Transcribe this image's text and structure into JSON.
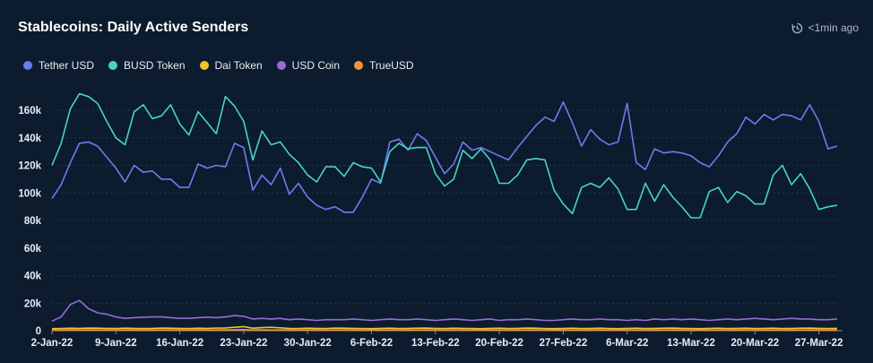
{
  "header": {
    "title": "Stablecoins: Daily Active Senders",
    "timestamp": "<1min ago",
    "timestamp_icon": "clock-refresh-icon"
  },
  "chart_data": {
    "type": "line",
    "title": "Stablecoins: Daily Active Senders",
    "xlabel": "",
    "ylabel": "",
    "ylim": [
      0,
      175000
    ],
    "y_ticks": [
      "0",
      "20k",
      "40k",
      "60k",
      "80k",
      "100k",
      "120k",
      "140k",
      "160k"
    ],
    "y_tick_values": [
      0,
      20000,
      40000,
      60000,
      80000,
      100000,
      120000,
      140000,
      160000
    ],
    "x_ticks": [
      "2-Jan-22",
      "9-Jan-22",
      "16-Jan-22",
      "23-Jan-22",
      "30-Jan-22",
      "6-Feb-22",
      "13-Feb-22",
      "20-Feb-22",
      "27-Feb-22",
      "6-Mar-22",
      "13-Mar-22",
      "20-Mar-22",
      "27-Mar-22"
    ],
    "x_tick_day_index": [
      0,
      7,
      14,
      21,
      28,
      35,
      42,
      49,
      56,
      63,
      70,
      77,
      84
    ],
    "x_start": "2-Jan-22",
    "x_end": "27-Mar-22",
    "grid": "horizontal",
    "legend_position": "top-left",
    "series": [
      {
        "name": "Tether USD",
        "color": "#6b7cf0",
        "values": [
          96000,
          106000,
          122000,
          136000,
          137000,
          134000,
          126000,
          118000,
          108000,
          120000,
          115000,
          116000,
          110000,
          110000,
          104000,
          104000,
          121000,
          118000,
          120000,
          119000,
          136000,
          133000,
          102000,
          113000,
          106000,
          118000,
          99000,
          107000,
          97000,
          91000,
          88000,
          90000,
          86000,
          86000,
          97000,
          110000,
          107000,
          137000,
          139000,
          131000,
          143000,
          138000,
          126000,
          114000,
          121000,
          137000,
          131000,
          133000,
          130000,
          127000,
          124000,
          133000,
          141000,
          149000,
          155000,
          152000,
          166000,
          151000,
          134000,
          146000,
          139000,
          135000,
          137000,
          165000,
          122000,
          117000,
          132000,
          129000,
          130000,
          129000,
          127000,
          122000,
          119000,
          127000,
          137000,
          143000,
          155000,
          150000,
          157000,
          153000,
          157000,
          156000,
          153000,
          164000,
          152000,
          132000,
          134000
        ]
      },
      {
        "name": "BUSD Token",
        "color": "#46d4c1",
        "values": [
          120000,
          136000,
          161000,
          172000,
          170000,
          165000,
          152000,
          140000,
          135000,
          159000,
          164000,
          154000,
          156000,
          164000,
          150000,
          142000,
          159000,
          151000,
          143000,
          170000,
          163000,
          152000,
          124000,
          145000,
          135000,
          137000,
          128000,
          122000,
          113000,
          108000,
          119000,
          119000,
          112000,
          122000,
          119000,
          118000,
          108000,
          130000,
          136000,
          132000,
          133000,
          133000,
          114000,
          105000,
          110000,
          131000,
          125000,
          132000,
          124000,
          107000,
          107000,
          113000,
          124000,
          125000,
          124000,
          102000,
          92000,
          85000,
          104000,
          107000,
          104000,
          111000,
          103000,
          88000,
          88000,
          107000,
          94000,
          106000,
          97000,
          90000,
          82000,
          82000,
          101000,
          104000,
          93000,
          101000,
          98000,
          92000,
          92000,
          113000,
          120000,
          106000,
          114000,
          103000,
          88000,
          90000,
          91000
        ]
      },
      {
        "name": "Dai Token",
        "color": "#f2c230",
        "values": [
          1500,
          1600,
          1800,
          1700,
          1900,
          1800,
          1700,
          1600,
          1800,
          1700,
          1600,
          1700,
          1900,
          1800,
          1700,
          1600,
          1800,
          1700,
          1900,
          2000,
          2500,
          3000,
          1800,
          2200,
          2500,
          2100,
          1700,
          1600,
          1800,
          1700,
          1600,
          1900,
          1800,
          1700,
          1600,
          1500,
          1700,
          1800,
          1600,
          1700,
          1800,
          1900,
          1700,
          1600,
          1800,
          1700,
          1600,
          1500,
          1700,
          1800,
          1600,
          1700,
          1900,
          1800,
          1600,
          1500,
          1700,
          1800,
          1600,
          1700,
          1800,
          1600,
          1500,
          1700,
          1800,
          1600,
          1700,
          1800,
          1900,
          1700,
          1600,
          1500,
          1700,
          1800,
          1600,
          1700,
          1800,
          1600,
          1700,
          1800,
          1600,
          1700,
          1800,
          1900,
          1700,
          1600,
          1700
        ]
      },
      {
        "name": "USD Coin",
        "color": "#9a6bd8",
        "values": [
          7000,
          10000,
          19000,
          22000,
          16000,
          13000,
          12000,
          10000,
          9000,
          9500,
          9800,
          10000,
          10000,
          9500,
          9000,
          9000,
          9500,
          9800,
          9500,
          10000,
          11000,
          10500,
          8500,
          9000,
          8500,
          9000,
          8000,
          8500,
          8000,
          7500,
          8000,
          8000,
          8000,
          8500,
          8000,
          7500,
          8000,
          8500,
          8000,
          8000,
          8500,
          8000,
          7500,
          8000,
          8500,
          8000,
          7500,
          8000,
          8500,
          7500,
          8000,
          8000,
          8500,
          8000,
          7500,
          7500,
          8000,
          8500,
          8000,
          8000,
          8500,
          8000,
          8000,
          7500,
          8000,
          7500,
          8500,
          8000,
          8500,
          8000,
          8500,
          8000,
          7500,
          8000,
          8500,
          8000,
          8500,
          9000,
          8500,
          8000,
          8500,
          9000,
          8500,
          8500,
          8000,
          8000,
          8500
        ]
      },
      {
        "name": "TrueUSD",
        "color": "#f5923e",
        "values": [
          500,
          500,
          600,
          500,
          600,
          500,
          500,
          600,
          500,
          500,
          600,
          500,
          500,
          600,
          500,
          500,
          600,
          500,
          500,
          600,
          700,
          800,
          500,
          600,
          500,
          500,
          600,
          500,
          500,
          600,
          500,
          500,
          600,
          500,
          500,
          600,
          500,
          500,
          600,
          500,
          500,
          600,
          500,
          500,
          600,
          500,
          500,
          600,
          500,
          500,
          600,
          500,
          500,
          600,
          500,
          500,
          600,
          500,
          500,
          600,
          500,
          500,
          600,
          500,
          500,
          600,
          500,
          500,
          600,
          500,
          500,
          600,
          500,
          500,
          600,
          500,
          500,
          600,
          500,
          500,
          600,
          500,
          500,
          600,
          500,
          500,
          600
        ]
      }
    ]
  }
}
